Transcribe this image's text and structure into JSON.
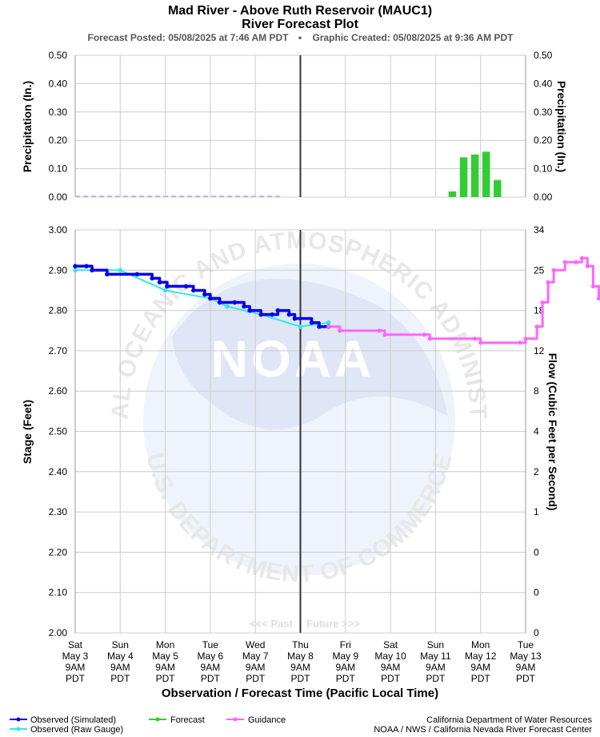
{
  "header": {
    "title": "Mad River - Above Ruth Reservoir (MAUC1)",
    "subtitle": "River Forecast Plot",
    "posted": "Forecast Posted: 05/08/2025 at 7:46 AM PDT",
    "bullet": "•",
    "created": "Graphic Created: 05/08/2025 at 9:36 AM PDT"
  },
  "watermark": {
    "logo_text": "NOAA",
    "top_arc": "NATIONAL OCEANIC AND ATMOSPHERIC ADMINISTRATION",
    "bottom_arc": "U.S. DEPARTMENT OF COMMERCE"
  },
  "past_label": "<<< Past",
  "future_label": "Future >>>",
  "footer": {
    "credit_line1": "California Department of Water Resources",
    "credit_line2": "NOAA / NWS / California Nevada River Forecast Center"
  },
  "legend": [
    {
      "label": "Observed (Simulated)",
      "color": "#0000ee"
    },
    {
      "label": "Observed (Raw Gauge)",
      "color": "#33e6e6"
    },
    {
      "label": "Forecast",
      "color": "#33cc33"
    },
    {
      "label": "Guidance",
      "color": "#ff66ff"
    }
  ],
  "colors": {
    "observed_simulated": "#0000ee",
    "observed_raw": "#33e6e6",
    "forecast": "#33cc33",
    "guidance": "#ff66ff",
    "grid": "#cccccc",
    "now_line": "#333333"
  },
  "chart_data": [
    {
      "type": "bar",
      "ylabel_left": "Precipitation (In.)",
      "ylabel_right": "Precipitation (In.)",
      "ylim": [
        0,
        0.5
      ],
      "yticks": [
        "0.50",
        "0.40",
        "0.30",
        "0.20",
        "0.10",
        "0.00"
      ],
      "grid": true,
      "forecast_bars": {
        "name": "Forecast",
        "x": [
          "2025-05-11 18:00",
          "2025-05-12 00:00",
          "2025-05-12 06:00",
          "2025-05-12 12:00",
          "2025-05-12 18:00"
        ],
        "values": [
          0.02,
          0.14,
          0.15,
          0.16,
          0.06
        ]
      },
      "observed_precip": {
        "x_start": "2025-05-03 09:00",
        "x_end": "2025-05-08 00:00",
        "value": 0.0
      }
    },
    {
      "type": "line",
      "xlabel": "Observation / Forecast Time (Pacific Local Time)",
      "ylabel_left": "Stage (Feet)",
      "ylabel_right": "Flow (Cubic Feet per Second)",
      "ylim": [
        2.0,
        3.0
      ],
      "yticks_left": [
        "3.00",
        "2.90",
        "2.80",
        "2.70",
        "2.60",
        "2.50",
        "2.40",
        "2.30",
        "2.20",
        "2.10",
        "2.00"
      ],
      "yticks_right": [
        "34",
        "25",
        "18",
        "12",
        "8",
        "4",
        "2",
        "1",
        "0",
        "0",
        "0"
      ],
      "grid": true,
      "now": "2025-05-08 09:00",
      "xticks": [
        {
          "day": "Sat",
          "date": "May 3",
          "time": "9AM",
          "tz": "PDT"
        },
        {
          "day": "Sun",
          "date": "May 4",
          "time": "9AM",
          "tz": "PDT"
        },
        {
          "day": "Mon",
          "date": "May 5",
          "time": "9AM",
          "tz": "PDT"
        },
        {
          "day": "Tue",
          "date": "May 6",
          "time": "9AM",
          "tz": "PDT"
        },
        {
          "day": "Wed",
          "date": "May 7",
          "time": "9AM",
          "tz": "PDT"
        },
        {
          "day": "Thu",
          "date": "May 8",
          "time": "9AM",
          "tz": "PDT"
        },
        {
          "day": "Fri",
          "date": "May 9",
          "time": "9AM",
          "tz": "PDT"
        },
        {
          "day": "Sat",
          "date": "May 10",
          "time": "9AM",
          "tz": "PDT"
        },
        {
          "day": "Sun",
          "date": "May 11",
          "time": "9AM",
          "tz": "PDT"
        },
        {
          "day": "Mon",
          "date": "May 12",
          "time": "9AM",
          "tz": "PDT"
        },
        {
          "day": "Tue",
          "date": "May 13",
          "time": "9AM",
          "tz": "PDT"
        }
      ],
      "series": [
        {
          "name": "Observed (Simulated)",
          "points": [
            [
              "2025-05-03 09:00",
              2.91
            ],
            [
              "2025-05-03 15:00",
              2.91
            ],
            [
              "2025-05-03 18:00",
              2.9
            ],
            [
              "2025-05-04 02:00",
              2.89
            ],
            [
              "2025-05-04 18:00",
              2.89
            ],
            [
              "2025-05-05 02:00",
              2.88
            ],
            [
              "2025-05-05 06:00",
              2.87
            ],
            [
              "2025-05-05 10:00",
              2.86
            ],
            [
              "2025-05-05 20:00",
              2.86
            ],
            [
              "2025-05-06 00:00",
              2.85
            ],
            [
              "2025-05-06 06:00",
              2.84
            ],
            [
              "2025-05-06 09:00",
              2.83
            ],
            [
              "2025-05-06 14:00",
              2.82
            ],
            [
              "2025-05-06 22:00",
              2.82
            ],
            [
              "2025-05-07 03:00",
              2.81
            ],
            [
              "2025-05-07 06:00",
              2.8
            ],
            [
              "2025-05-07 12:00",
              2.79
            ],
            [
              "2025-05-07 18:00",
              2.79
            ],
            [
              "2025-05-07 21:00",
              2.8
            ],
            [
              "2025-05-08 03:00",
              2.79
            ],
            [
              "2025-05-08 06:00",
              2.78
            ],
            [
              "2025-05-08 15:00",
              2.77
            ],
            [
              "2025-05-08 19:00",
              2.76
            ],
            [
              "2025-05-09 00:00",
              2.76
            ]
          ]
        },
        {
          "name": "Observed (Raw Gauge)",
          "points": [
            [
              "2025-05-03 09:00",
              2.9
            ],
            [
              "2025-05-04 09:00",
              2.9
            ],
            [
              "2025-05-05 09:00",
              2.85
            ],
            [
              "2025-05-06 09:00",
              2.83
            ],
            [
              "2025-05-06 18:00",
              2.81
            ],
            [
              "2025-05-07 12:00",
              2.79
            ],
            [
              "2025-05-08 09:00",
              2.76
            ],
            [
              "2025-05-09 00:00",
              2.77
            ]
          ]
        },
        {
          "name": "Guidance",
          "points": [
            [
              "2025-05-09 00:00",
              2.76
            ],
            [
              "2025-05-09 06:00",
              2.75
            ],
            [
              "2025-05-10 03:00",
              2.75
            ],
            [
              "2025-05-10 06:00",
              2.74
            ],
            [
              "2025-05-11 03:00",
              2.74
            ],
            [
              "2025-05-11 06:00",
              2.73
            ],
            [
              "2025-05-12 06:00",
              2.73
            ],
            [
              "2025-05-12 09:00",
              2.72
            ],
            [
              "2025-05-13 06:00",
              2.72
            ],
            [
              "2025-05-13 09:00",
              2.73
            ],
            [
              "2025-05-13 15:00",
              2.76
            ],
            [
              "2025-05-13 18:00",
              2.82
            ],
            [
              "2025-05-13 21:00",
              2.87
            ],
            [
              "2025-05-14 00:00",
              2.9
            ],
            [
              "2025-05-14 06:00",
              2.92
            ],
            [
              "2025-05-14 12:00",
              2.92
            ],
            [
              "2025-05-14 15:00",
              2.93
            ],
            [
              "2025-05-14 18:00",
              2.91
            ],
            [
              "2025-05-14 21:00",
              2.86
            ],
            [
              "2025-05-15 00:00",
              2.83
            ],
            [
              "2025-05-15 03:00",
              2.81
            ],
            [
              "2025-05-15 06:00",
              2.78
            ],
            [
              "2025-05-15 09:00",
              2.74
            ]
          ]
        }
      ]
    }
  ]
}
